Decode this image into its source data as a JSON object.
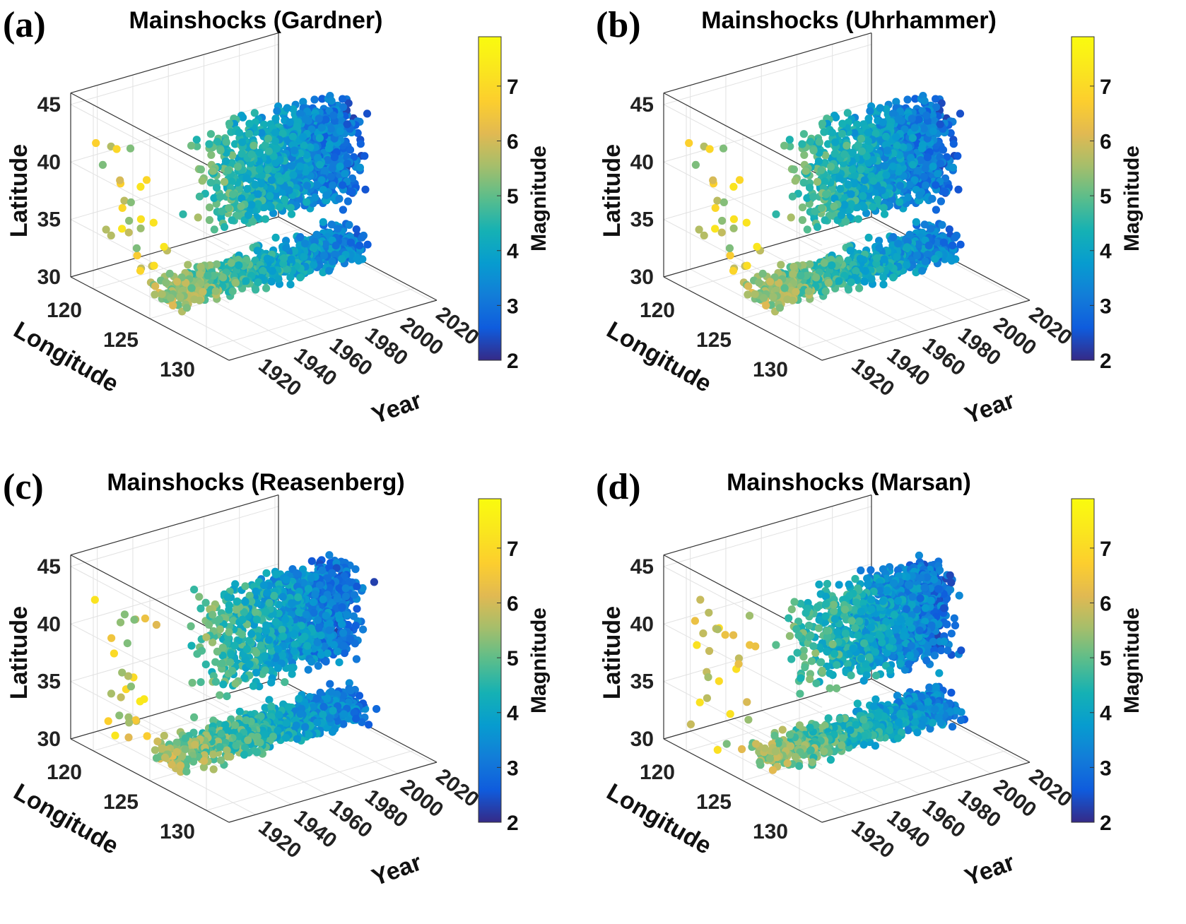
{
  "figure": {
    "colorbar_label": "Magnitude",
    "axis_labels": {
      "x": "Year",
      "y": "Longitude",
      "z": "Latitude"
    }
  },
  "chart_data": [
    {
      "type": "scatter",
      "panel_label": "(a)",
      "title": "Mainshocks (Gardner)",
      "xlabel": "Year",
      "ylabel": "Longitude",
      "zlabel": "Latitude",
      "x_ticks": [
        "1920",
        "1940",
        "1960",
        "1980",
        "2000",
        "2020"
      ],
      "y_ticks": [
        "120",
        "125",
        "130"
      ],
      "z_ticks": [
        "30",
        "35",
        "40",
        "45"
      ],
      "xlim": [
        1905,
        2022
      ],
      "ylim": [
        118,
        132
      ],
      "zlim": [
        30,
        46
      ],
      "colorbar": {
        "label": "Magnitude",
        "ticks": [
          "2",
          "3",
          "4",
          "5",
          "6",
          "7"
        ],
        "clim": [
          2,
          7.9
        ],
        "colormap": "parula"
      },
      "seed": 11
    },
    {
      "type": "scatter",
      "panel_label": "(b)",
      "title": "Mainshocks (Uhrhammer)",
      "xlabel": "Year",
      "ylabel": "Longitude",
      "zlabel": "Latitude",
      "x_ticks": [
        "1920",
        "1940",
        "1960",
        "1980",
        "2000",
        "2020"
      ],
      "y_ticks": [
        "120",
        "125",
        "130"
      ],
      "z_ticks": [
        "30",
        "35",
        "40",
        "45"
      ],
      "xlim": [
        1905,
        2022
      ],
      "ylim": [
        118,
        132
      ],
      "zlim": [
        30,
        46
      ],
      "colorbar": {
        "label": "Magnitude",
        "ticks": [
          "2",
          "3",
          "4",
          "5",
          "6",
          "7"
        ],
        "clim": [
          2,
          7.9
        ],
        "colormap": "parula"
      },
      "seed": 11
    },
    {
      "type": "scatter",
      "panel_label": "(c)",
      "title": "Mainshocks (Reasenberg)",
      "xlabel": "Year",
      "ylabel": "Longitude",
      "zlabel": "Latitude",
      "x_ticks": [
        "1920",
        "1940",
        "1960",
        "1980",
        "2000",
        "2020"
      ],
      "y_ticks": [
        "120",
        "125",
        "130"
      ],
      "z_ticks": [
        "30",
        "35",
        "40",
        "45"
      ],
      "xlim": [
        1905,
        2022
      ],
      "ylim": [
        118,
        132
      ],
      "zlim": [
        30,
        46
      ],
      "colorbar": {
        "label": "Magnitude",
        "ticks": [
          "2",
          "3",
          "4",
          "5",
          "6",
          "7"
        ],
        "clim": [
          2,
          7.9
        ],
        "colormap": "parula"
      },
      "seed": 23
    },
    {
      "type": "scatter",
      "panel_label": "(d)",
      "title": "Mainshocks (Marsan)",
      "xlabel": "Year",
      "ylabel": "Longitude",
      "zlabel": "Latitude",
      "x_ticks": [
        "1920",
        "1940",
        "1960",
        "1980",
        "2000",
        "2020"
      ],
      "y_ticks": [
        "120",
        "125",
        "130"
      ],
      "z_ticks": [
        "30",
        "35",
        "40",
        "45"
      ],
      "xlim": [
        1905,
        2022
      ],
      "ylim": [
        118,
        132
      ],
      "zlim": [
        30,
        46
      ],
      "colorbar": {
        "label": "Magnitude",
        "ticks": [
          "2",
          "3",
          "4",
          "5",
          "6",
          "7"
        ],
        "clim": [
          2,
          7.9
        ],
        "colormap": "parula"
      },
      "seed": 37
    }
  ]
}
